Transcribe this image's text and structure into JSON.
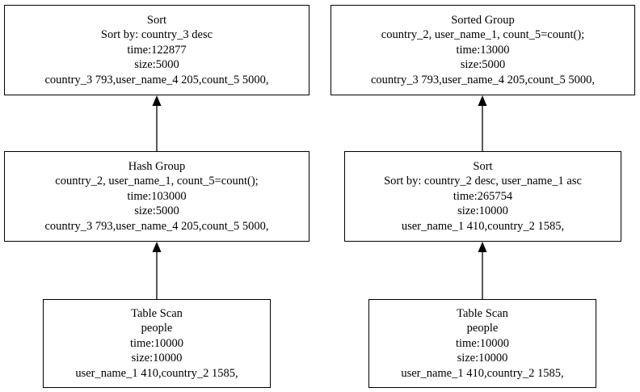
{
  "diagram": {
    "left_plan": {
      "top": {
        "title": "Sort",
        "lines": [
          "Sort by: country_3 desc",
          "time:122877",
          "size:5000",
          "country_3 793,user_name_4 205,count_5 5000,"
        ]
      },
      "middle": {
        "title": "Hash Group",
        "lines": [
          "country_2, user_name_1, count_5=count();",
          "time:103000",
          "size:5000",
          "country_3 793,user_name_4 205,count_5 5000,"
        ]
      },
      "bottom": {
        "title": "Table Scan",
        "lines": [
          "people",
          "time:10000",
          "size:10000",
          "user_name_1 410,country_2 1585,"
        ]
      }
    },
    "right_plan": {
      "top": {
        "title": "Sorted Group",
        "lines": [
          "country_2, user_name_1, count_5=count();",
          "time:13000",
          "size:5000",
          "country_3 793,user_name_4 205,count_5 5000,"
        ]
      },
      "middle": {
        "title": "Sort",
        "lines": [
          "Sort by: country_2 desc, user_name_1 asc",
          "time:265754",
          "size:10000",
          "user_name_1 410,country_2 1585,"
        ]
      },
      "bottom": {
        "title": "Table Scan",
        "lines": [
          "people",
          "time:10000",
          "size:10000",
          "user_name_1 410,country_2 1585,"
        ]
      }
    }
  }
}
